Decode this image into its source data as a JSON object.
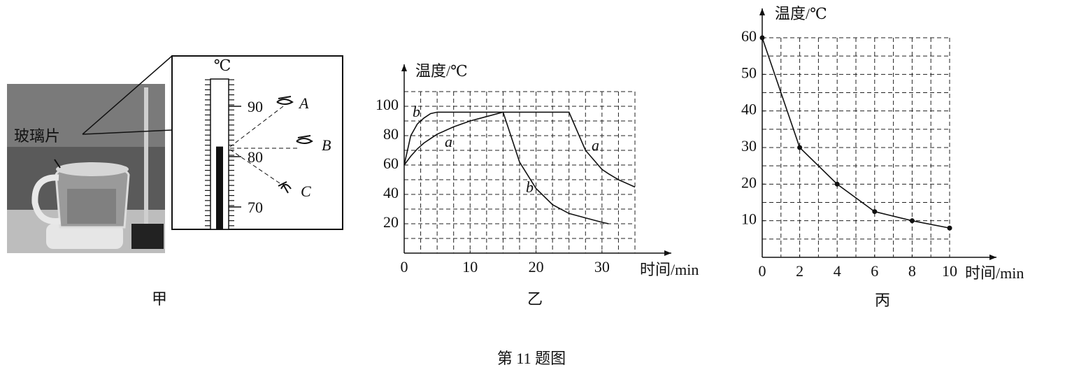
{
  "panel_jia": {
    "glass_label": "玻璃片",
    "thermometer": {
      "unit": "℃",
      "ticks": [
        90,
        80,
        70
      ],
      "reading": 82,
      "viewers": [
        "A",
        "B",
        "C"
      ]
    },
    "label": "甲"
  },
  "chart_data": [
    {
      "type": "line",
      "label": "乙",
      "y_axis_label": "温度/℃",
      "x_axis_label": "时间/min",
      "x": [
        0,
        1,
        2,
        3,
        4,
        5,
        7.5,
        10,
        12.5,
        15,
        17.5,
        20,
        22.5,
        25,
        27.5,
        30,
        31,
        32.5,
        35
      ],
      "series": [
        {
          "name": "a",
          "color": "#111111",
          "values": [
            60,
            66,
            71,
            75,
            78,
            81,
            86,
            90,
            93,
            96,
            96,
            96,
            96,
            96,
            70,
            57,
            54,
            50,
            45
          ]
        },
        {
          "name": "b",
          "color": "#111111",
          "values": [
            60,
            80,
            88,
            92,
            95,
            96,
            96,
            96,
            96,
            96,
            62,
            44,
            33,
            27,
            24,
            21,
            20,
            null,
            null
          ]
        }
      ],
      "annotations": [
        "b",
        "a",
        "b",
        "a"
      ],
      "xlim": [
        0,
        35
      ],
      "ylim": [
        0,
        110
      ],
      "xticks": [
        0,
        10,
        20,
        30
      ],
      "yticks": [
        20,
        40,
        60,
        80,
        100
      ],
      "grid": true,
      "grid_step_x": 2.5,
      "grid_step_y": 10,
      "markers": false
    },
    {
      "type": "line",
      "label": "丙",
      "y_axis_label": "温度/℃",
      "x_axis_label": "时间/min",
      "x": [
        0,
        2,
        4,
        6,
        8,
        10
      ],
      "series": [
        {
          "name": "温度",
          "color": "#111111",
          "values": [
            60,
            30,
            20,
            12.5,
            10,
            8
          ]
        }
      ],
      "xlim": [
        0,
        10
      ],
      "ylim": [
        0,
        60
      ],
      "xticks": [
        0,
        2,
        4,
        6,
        8,
        10
      ],
      "yticks": [
        10,
        20,
        30,
        40,
        50,
        60
      ],
      "grid": true,
      "grid_step_x": 1,
      "grid_step_y": 5,
      "markers": true
    }
  ],
  "caption": "第 11 题图"
}
